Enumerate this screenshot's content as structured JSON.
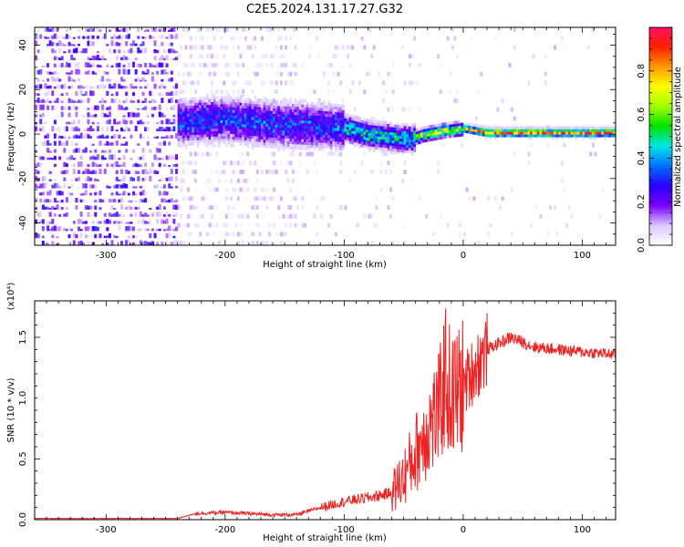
{
  "title": "C2E5.2024.131.17.27.G32",
  "chart_data": [
    {
      "type": "heatmap",
      "xlabel": "Height of straight line (km)",
      "ylabel": "Frequency (Hz)",
      "xlim": [
        -360,
        128
      ],
      "ylim": [
        -50,
        48
      ],
      "xticks": [
        -300,
        -200,
        -100,
        0,
        100
      ],
      "yticks": [
        -40,
        -20,
        0,
        20,
        40
      ],
      "colorbar": {
        "label": "Normalized spectral amplitude",
        "range": [
          0,
          1
        ],
        "ticks": [
          "0.0",
          "0.2",
          "0.4",
          "0.6",
          "0.8"
        ],
        "colors": [
          "#ffffff",
          "#d9c6ff",
          "#7a00ff",
          "#2a00ff",
          "#0070ff",
          "#00e6e6",
          "#00e000",
          "#a0ff00",
          "#ffff00",
          "#ff9900",
          "#ff2000",
          "#ff1060"
        ]
      },
      "ridge": {
        "x": [
          -240,
          -200,
          -160,
          -120,
          -100,
          -80,
          -60,
          -45,
          -35,
          -25,
          -15,
          0,
          20,
          60,
          100,
          128
        ],
        "freq_hz": [
          5,
          6,
          4,
          3,
          2,
          -1,
          -2,
          -3,
          -1,
          0,
          1,
          2,
          0,
          0,
          0,
          0
        ]
      }
    },
    {
      "type": "line",
      "xlabel": "Height of straight line (km)",
      "ylabel": "SNR (10 * v/v)",
      "y_multiplier": "(x10⁴)",
      "xlim": [
        -360,
        128
      ],
      "ylim": [
        0,
        1.8
      ],
      "xticks": [
        -300,
        -200,
        -100,
        0,
        100
      ],
      "yticks": [
        "0.0",
        "0.5",
        "1.0",
        "1.5"
      ],
      "series": [
        {
          "color": "#ee2222",
          "x": [
            -360,
            -300,
            -240,
            -225,
            -200,
            -160,
            -140,
            -120,
            -100,
            -80,
            -60,
            -50,
            -40,
            -30,
            -20,
            -15,
            -10,
            0,
            20,
            40,
            60,
            80,
            100,
            128
          ],
          "y": [
            0.01,
            0.01,
            0.01,
            0.05,
            0.06,
            0.04,
            0.04,
            0.1,
            0.15,
            0.18,
            0.22,
            0.35,
            0.55,
            0.75,
            0.9,
            1.2,
            1.0,
            1.1,
            1.4,
            1.5,
            1.42,
            1.4,
            1.38,
            1.36
          ]
        }
      ]
    }
  ]
}
